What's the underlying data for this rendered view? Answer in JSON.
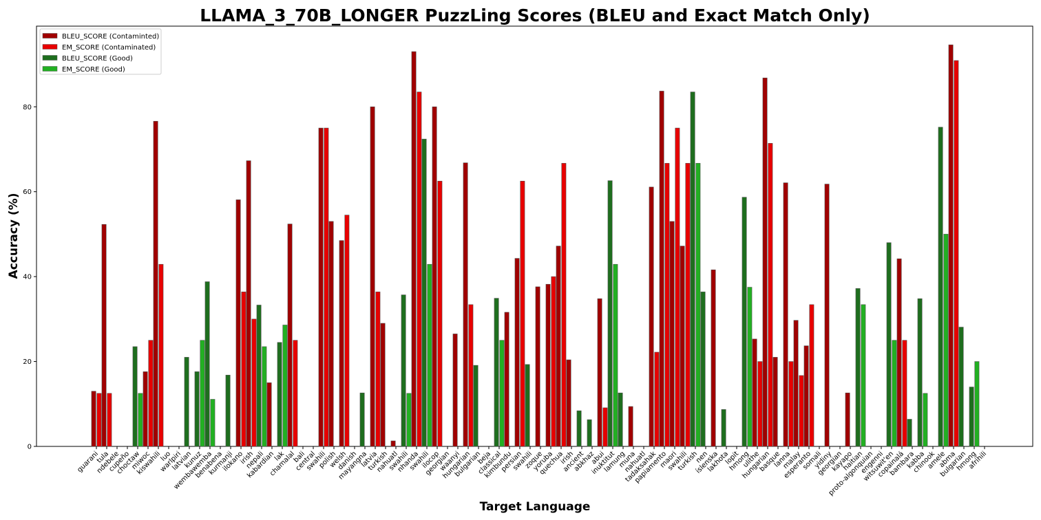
{
  "chart_data": {
    "type": "bar",
    "title": "LLAMA_3_70B_LONGER PuzzLing Scores (BLEU and Exact Match Only)",
    "xlabel": "Target Language",
    "ylabel": "Accuracy (%)",
    "ylim": [
      0,
      99
    ],
    "yticks": [
      0,
      20,
      40,
      60,
      80
    ],
    "legend": {
      "placement": "top-left",
      "entries": [
        "BLEU_SCORE (Contaminted)",
        "EM_SCORE (Contaminated)",
        "BLEU_SCORE (Good)",
        "EM_SCORE (Good)"
      ]
    },
    "colors": {
      "bleu_contaminated": "#a00000",
      "em_contaminated": "#e80000",
      "bleu_good": "#1e6e1e",
      "em_good": "#22b022",
      "edge": "#555555"
    },
    "categories": [
      {
        "label": "guarani",
        "group": "contaminated",
        "bleu": 13,
        "em": 12.5
      },
      {
        "label": "tula",
        "group": "contaminated",
        "bleu": 52.3,
        "em": 12.5
      },
      {
        "label": "ndebele",
        "group": "contaminated",
        "bleu": 0,
        "em": 0
      },
      {
        "label": "cupeño",
        "group": "contaminated",
        "bleu": 0,
        "em": 0
      },
      {
        "label": "choctaw",
        "group": "good",
        "bleu": 23.5,
        "em": 12.5
      },
      {
        "label": "miwoc",
        "group": "contaminated",
        "bleu": 17.6,
        "em": 25
      },
      {
        "label": "kiswahili",
        "group": "contaminated",
        "bleu": 76.6,
        "em": 42.9
      },
      {
        "label": "luo",
        "group": "contaminated",
        "bleu": 0,
        "em": 0
      },
      {
        "label": "warlpiri",
        "group": "good",
        "bleu": 0,
        "em": 0
      },
      {
        "label": "latvian",
        "group": "good",
        "bleu": 21,
        "em": 0
      },
      {
        "label": "kunuz",
        "group": "good",
        "bleu": 17.6,
        "em": 25
      },
      {
        "label": "wembawemba",
        "group": "good",
        "bleu": 38.8,
        "em": 11.1
      },
      {
        "label": "benabena",
        "group": "contaminated",
        "bleu": 0,
        "em": 0
      },
      {
        "label": "kurmanji",
        "group": "good",
        "bleu": 16.8,
        "em": 0
      },
      {
        "label": "ilokano",
        "group": "contaminated",
        "bleu": 58.1,
        "em": 36.4
      },
      {
        "label": "irish",
        "group": "contaminated",
        "bleu": 67.3,
        "em": 30
      },
      {
        "label": "nepali",
        "group": "good",
        "bleu": 33.3,
        "em": 23.5
      },
      {
        "label": "kabardian",
        "group": "contaminated",
        "bleu": 15,
        "em": 0
      },
      {
        "label": "lak",
        "group": "good",
        "bleu": 24.5,
        "em": 28.6
      },
      {
        "label": "chamalal",
        "group": "contaminated",
        "bleu": 52.4,
        "em": 25
      },
      {
        "label": "bali",
        "group": "contaminated",
        "bleu": 0,
        "em": 0
      },
      {
        "label": "central",
        "group": "contaminated",
        "bleu": 0,
        "em": 0
      },
      {
        "label": "swahili",
        "group": "contaminated",
        "bleu": 75,
        "em": 75
      },
      {
        "label": "polish",
        "group": "contaminated",
        "bleu": 53,
        "em": 0
      },
      {
        "label": "welsh",
        "group": "contaminated",
        "bleu": 48.5,
        "em": 54.5
      },
      {
        "label": "danish",
        "group": "contaminated",
        "bleu": 0,
        "em": 0
      },
      {
        "label": "mayangna",
        "group": "good",
        "bleu": 12.6,
        "em": 0
      },
      {
        "label": "latvia",
        "group": "contaminated",
        "bleu": 80,
        "em": 36.4
      },
      {
        "label": "turkish",
        "group": "contaminated",
        "bleu": 29,
        "em": 0
      },
      {
        "label": "nahuatl",
        "group": "contaminated",
        "bleu": 1.3,
        "em": 0
      },
      {
        "label": "swahili",
        "group": "good",
        "bleu": 35.7,
        "em": 12.5
      },
      {
        "label": "nhanda",
        "group": "contaminated",
        "bleu": 93,
        "em": 83.5
      },
      {
        "label": "swahili",
        "group": "good",
        "bleu": 72.4,
        "em": 42.9
      },
      {
        "label": "ilocop",
        "group": "contaminated",
        "bleu": 80,
        "em": 62.5
      },
      {
        "label": "georgian",
        "group": "contaminated",
        "bleu": 0,
        "em": 0
      },
      {
        "label": "waanyi",
        "group": "contaminated",
        "bleu": 26.5,
        "em": 0
      },
      {
        "label": "hungarian",
        "group": "contaminated",
        "bleu": 66.8,
        "em": 33.4
      },
      {
        "label": "bulgarian",
        "group": "good",
        "bleu": 19.1,
        "em": 0
      },
      {
        "label": "beja",
        "group": "good",
        "bleu": 0,
        "em": 0
      },
      {
        "label": "classical",
        "group": "good",
        "bleu": 34.9,
        "em": 25
      },
      {
        "label": "kimbundu",
        "group": "contaminated",
        "bleu": 31.6,
        "em": 0
      },
      {
        "label": "persian",
        "group": "contaminated",
        "bleu": 44.3,
        "em": 62.5
      },
      {
        "label": "swahili",
        "group": "good",
        "bleu": 19.3,
        "em": 0
      },
      {
        "label": "zoque",
        "group": "contaminated",
        "bleu": 37.6,
        "em": 0
      },
      {
        "label": "yoruba",
        "group": "contaminated",
        "bleu": 38.2,
        "em": 40
      },
      {
        "label": "quechua",
        "group": "contaminated",
        "bleu": 47.2,
        "em": 66.7
      },
      {
        "label": "irish",
        "group": "contaminated",
        "bleu": 20.4,
        "em": 0
      },
      {
        "label": "ancient",
        "group": "good",
        "bleu": 8.4,
        "em": 0
      },
      {
        "label": "abkhaz",
        "group": "good",
        "bleu": 6.3,
        "em": 0
      },
      {
        "label": "abui",
        "group": "contaminated",
        "bleu": 34.8,
        "em": 9.1
      },
      {
        "label": "inuktitut",
        "group": "good",
        "bleu": 62.6,
        "em": 42.9
      },
      {
        "label": "lamung",
        "group": "good",
        "bleu": 12.6,
        "em": 0
      },
      {
        "label": "muna",
        "group": "contaminated",
        "bleu": 9.4,
        "em": 0
      },
      {
        "label": "nahuatl",
        "group": "contaminated",
        "bleu": 0,
        "em": 0
      },
      {
        "label": "tadaksahak",
        "group": "contaminated",
        "bleu": 61.1,
        "em": 22.2
      },
      {
        "label": "papiamento",
        "group": "contaminated",
        "bleu": 83.7,
        "em": 66.7
      },
      {
        "label": "maori",
        "group": "contaminated",
        "bleu": 53,
        "em": 75
      },
      {
        "label": "swahili",
        "group": "contaminated",
        "bleu": 47.2,
        "em": 66.7
      },
      {
        "label": "turkish",
        "group": "good",
        "bleu": 83.5,
        "em": 66.7
      },
      {
        "label": "nen",
        "group": "good",
        "bleu": 36.4,
        "em": 0
      },
      {
        "label": "íslenska",
        "group": "contaminated",
        "bleu": 41.6,
        "em": 0
      },
      {
        "label": "lakhota",
        "group": "good",
        "bleu": 8.7,
        "em": 0
      },
      {
        "label": "lopit",
        "group": "good",
        "bleu": 0,
        "em": 0
      },
      {
        "label": "hmong",
        "group": "good",
        "bleu": 58.7,
        "em": 37.5
      },
      {
        "label": "ulithe",
        "group": "contaminated",
        "bleu": 25.3,
        "em": 20
      },
      {
        "label": "hungarian",
        "group": "contaminated",
        "bleu": 86.8,
        "em": 71.4
      },
      {
        "label": "basque",
        "group": "contaminated",
        "bleu": 21,
        "em": 0
      },
      {
        "label": "lanna",
        "group": "contaminated",
        "bleu": 62.1,
        "em": 20
      },
      {
        "label": "malay",
        "group": "contaminated",
        "bleu": 29.7,
        "em": 16.7
      },
      {
        "label": "esperanto",
        "group": "contaminated",
        "bleu": 23.7,
        "em": 33.4
      },
      {
        "label": "somali",
        "group": "contaminated",
        "bleu": 0,
        "em": 0
      },
      {
        "label": "yidiny",
        "group": "contaminated",
        "bleu": 61.8,
        "em": 0
      },
      {
        "label": "georgian",
        "group": "contaminated",
        "bleu": 0,
        "em": 0
      },
      {
        "label": "kayapo",
        "group": "contaminated",
        "bleu": 12.6,
        "em": 0
      },
      {
        "label": "haitian",
        "group": "good",
        "bleu": 37.2,
        "em": 33.4
      },
      {
        "label": "proto-algonquian",
        "group": "good",
        "bleu": 0,
        "em": 0
      },
      {
        "label": "engenni",
        "group": "good",
        "bleu": 0,
        "em": 0
      },
      {
        "label": "witsuwit'en",
        "group": "good",
        "bleu": 48,
        "em": 25
      },
      {
        "label": "copainalá",
        "group": "contaminated",
        "bleu": 44.2,
        "em": 25
      },
      {
        "label": "bambara",
        "group": "good",
        "bleu": 6.4,
        "em": 0
      },
      {
        "label": "kabba",
        "group": "good",
        "bleu": 34.8,
        "em": 12.5
      },
      {
        "label": "chinook",
        "group": "good",
        "bleu": 0,
        "em": 0
      },
      {
        "label": "amele",
        "group": "good",
        "bleu": 75.2,
        "em": 50
      },
      {
        "label": "abma",
        "group": "contaminated",
        "bleu": 94.6,
        "em": 90.9
      },
      {
        "label": "bulgarian",
        "group": "good",
        "bleu": 28.1,
        "em": 0
      },
      {
        "label": "hmong",
        "group": "good",
        "bleu": 14,
        "em": 20
      },
      {
        "label": "afrihili",
        "group": "good",
        "bleu": 0,
        "em": 0
      }
    ]
  }
}
